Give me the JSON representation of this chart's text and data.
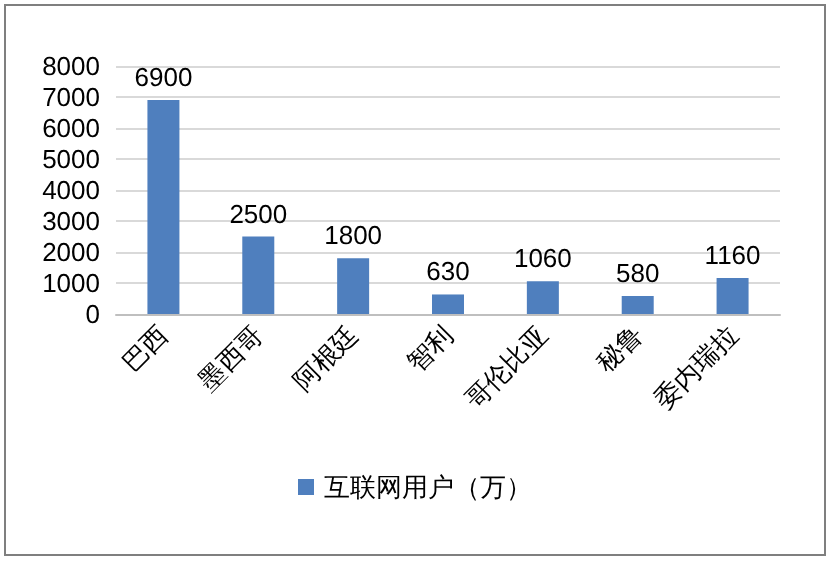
{
  "chart_data": {
    "type": "bar",
    "categories": [
      "巴西",
      "墨西哥",
      "阿根廷",
      "智利",
      "哥伦比亚",
      "秘鲁",
      "委内瑞拉"
    ],
    "series": [
      {
        "name": "互联网用户（万）",
        "color": "#4f7fbe",
        "values": [
          6900,
          2500,
          1800,
          630,
          1060,
          580,
          1160
        ]
      }
    ],
    "ylim": [
      0,
      8000
    ],
    "yticks": [
      0,
      1000,
      2000,
      3000,
      4000,
      5000,
      6000,
      7000,
      8000
    ],
    "grid": "y",
    "legend": "bottom",
    "data_labels": true
  }
}
